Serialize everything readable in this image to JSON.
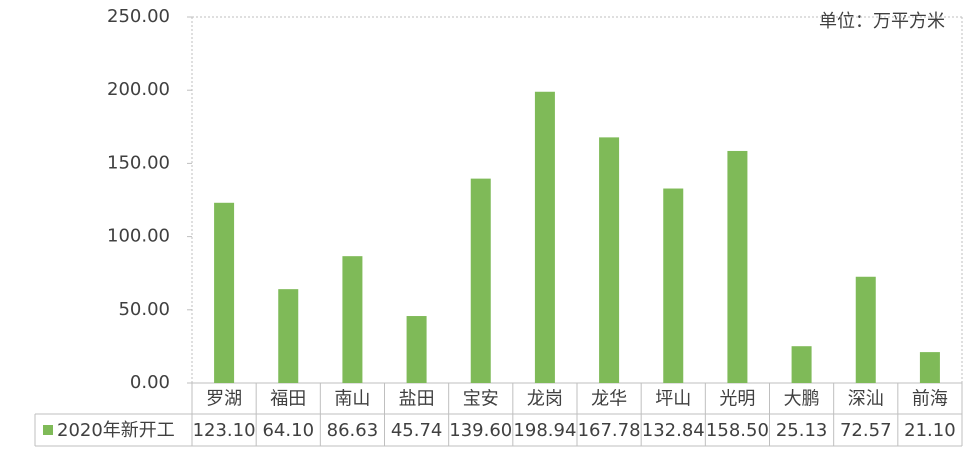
{
  "chart_data": {
    "type": "bar",
    "annotation": "单位：万平方米",
    "categories": [
      "罗湖",
      "福田",
      "南山",
      "盐田",
      "宝安",
      "龙岗",
      "龙华",
      "坪山",
      "光明",
      "大鹏",
      "深汕",
      "前海"
    ],
    "series": [
      {
        "name": "2020年新开工",
        "color": "#7fba58",
        "values": [
          123.1,
          64.1,
          86.63,
          45.74,
          139.6,
          198.94,
          167.78,
          132.84,
          158.5,
          25.13,
          72.57,
          21.1
        ],
        "value_labels": [
          "123.10",
          "64.10",
          "86.63",
          "45.74",
          "139.60",
          "198.94",
          "167.78",
          "132.84",
          "158.50",
          "25.13",
          "72.57",
          "21.10"
        ]
      }
    ],
    "ylim": [
      0,
      250
    ],
    "yticks": [
      {
        "value": 0,
        "label": "0.00"
      },
      {
        "value": 50,
        "label": "50.00"
      },
      {
        "value": 100,
        "label": "100.00"
      },
      {
        "value": 150,
        "label": "150.00"
      },
      {
        "value": 200,
        "label": "200.00"
      },
      {
        "value": 250,
        "label": "250.00"
      }
    ],
    "grid": false
  }
}
